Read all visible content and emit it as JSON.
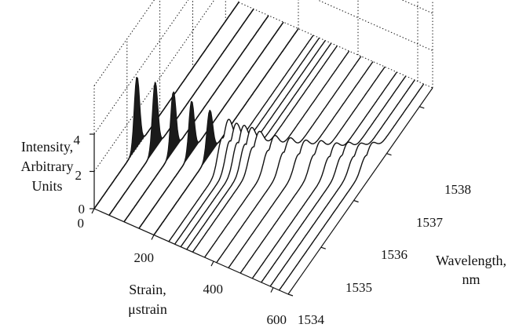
{
  "chart_data": {
    "type": "waterfall-3d",
    "zlabel_lines": [
      "Intensity,",
      "Arbitrary",
      "Units"
    ],
    "xlabel_lines": [
      "Strain,",
      "μstrain"
    ],
    "ylabel_lines": [
      "Wavelength,",
      "nm"
    ],
    "z_ticks": [
      "4",
      "2",
      "0"
    ],
    "x_ticks": [
      "0",
      "200",
      "400",
      "600"
    ],
    "y_ticks": [
      "1534",
      "1535",
      "1536",
      "1537",
      "1538"
    ],
    "xlim": [
      0,
      650
    ],
    "ylim": [
      1534,
      1538.4
    ],
    "zlim": [
      0,
      4
    ],
    "grid": true,
    "grid_style": "dotted",
    "series": [
      {
        "strain": 0,
        "peak_nm": 1535.3,
        "peak": 3.8,
        "fwhm": 0.18
      },
      {
        "strain": 50,
        "peak_nm": 1535.4,
        "peak": 3.6,
        "fwhm": 0.18
      },
      {
        "strain": 100,
        "peak_nm": 1535.5,
        "peak": 3.2,
        "fwhm": 0.18
      },
      {
        "strain": 150,
        "peak_nm": 1535.6,
        "peak": 2.8,
        "fwhm": 0.18
      },
      {
        "strain": 200,
        "peak_nm": 1535.7,
        "peak": 2.4,
        "fwhm": 0.2
      },
      {
        "strain": 250,
        "peak_nm": 1535.8,
        "peak": 2.0,
        "fwhm": 0.35
      },
      {
        "strain": 270,
        "peak_nm": 1535.85,
        "peak": 1.8,
        "fwhm": 0.35
      },
      {
        "strain": 290,
        "peak_nm": 1535.9,
        "peak": 1.7,
        "fwhm": 0.35
      },
      {
        "strain": 310,
        "peak_nm": 1535.95,
        "peak": 1.6,
        "fwhm": 0.35
      },
      {
        "strain": 330,
        "peak_nm": 1536.0,
        "peak": 1.4,
        "fwhm": 0.35
      },
      {
        "strain": 370,
        "peak_nm": 1536.1,
        "peak": 1.2,
        "fwhm": 0.35
      },
      {
        "strain": 410,
        "peak_nm": 1536.2,
        "peak": 1.1,
        "fwhm": 0.35
      },
      {
        "strain": 450,
        "peak_nm": 1536.3,
        "peak": 1.0,
        "fwhm": 0.35
      },
      {
        "strain": 490,
        "peak_nm": 1536.4,
        "peak": 1.0,
        "fwhm": 0.35
      },
      {
        "strain": 530,
        "peak_nm": 1536.5,
        "peak": 0.9,
        "fwhm": 0.35
      },
      {
        "strain": 560,
        "peak_nm": 1536.6,
        "peak": 0.9,
        "fwhm": 0.35
      },
      {
        "strain": 590,
        "peak_nm": 1536.7,
        "peak": 0.8,
        "fwhm": 0.35
      },
      {
        "strain": 620,
        "peak_nm": 1536.8,
        "peak": 0.8,
        "fwhm": 0.35
      }
    ]
  }
}
